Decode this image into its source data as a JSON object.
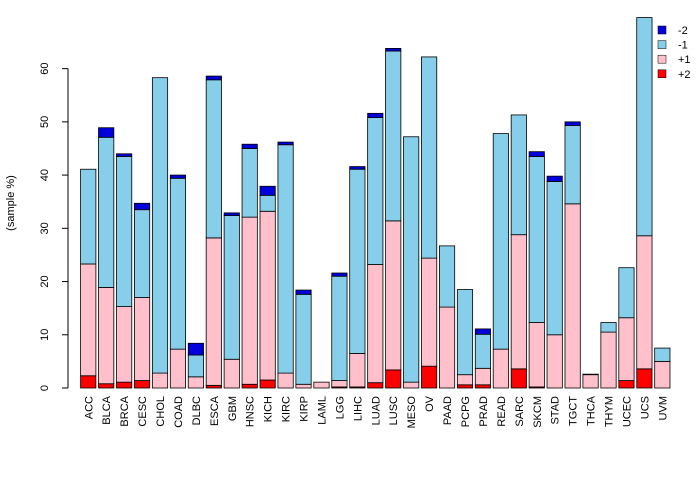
{
  "chart_data": {
    "type": "bar",
    "stacked": true,
    "title": "",
    "xlabel": "",
    "ylabel": "(sample %)",
    "ylim": [
      0,
      70
    ],
    "yticks": [
      0,
      10,
      20,
      30,
      40,
      50,
      60
    ],
    "categories": [
      "ACC",
      "BLCA",
      "BRCA",
      "CESC",
      "CHOL",
      "COAD",
      "DLBC",
      "ESCA",
      "GBM",
      "HNSC",
      "KICH",
      "KIRC",
      "KIRP",
      "LAML",
      "LGG",
      "LIHC",
      "LUAD",
      "LUSC",
      "MESO",
      "OV",
      "PAAD",
      "PCPG",
      "PRAD",
      "READ",
      "SARC",
      "SKCM",
      "STAD",
      "TGCT",
      "THCA",
      "THYM",
      "UCEC",
      "UCS",
      "UVM"
    ],
    "legend": {
      "position": "top-right",
      "entries": [
        {
          "label": "-2",
          "color": "#0000dd"
        },
        {
          "label": "-1",
          "color": "#87ceeb"
        },
        {
          "label": "+1",
          "color": "#ffc0cb"
        },
        {
          "label": "+2",
          "color": "#ff0000"
        }
      ]
    },
    "series": [
      {
        "name": "+2",
        "color": "#ff0000",
        "values": [
          2.3,
          0.8,
          1.1,
          1.4,
          0,
          0,
          0,
          0.5,
          0,
          0.7,
          1.5,
          0,
          0,
          0,
          0.2,
          0.2,
          1.0,
          3.4,
          0,
          4.1,
          0,
          0.6,
          0.6,
          0,
          3.6,
          0.2,
          0,
          0,
          0,
          0,
          1.4,
          3.6,
          0
        ]
      },
      {
        "name": "+1",
        "color": "#ffc0cb",
        "values": [
          21.0,
          18.1,
          14.2,
          15.6,
          2.8,
          7.3,
          2.1,
          27.7,
          5.4,
          31.4,
          31.7,
          2.8,
          0.7,
          1.1,
          1.2,
          6.3,
          22.2,
          28.0,
          1.1,
          20.3,
          15.2,
          1.9,
          3.1,
          7.3,
          25.2,
          12.1,
          10.0,
          34.6,
          2.5,
          10.5,
          11.8,
          25.0,
          5.0
        ]
      },
      {
        "name": "-1",
        "color": "#87ceeb",
        "values": [
          17.8,
          28.2,
          28.2,
          16.5,
          55.5,
          32.1,
          4.1,
          29.7,
          27.0,
          12.9,
          3.0,
          42.9,
          16.9,
          0,
          19.6,
          34.6,
          27.6,
          31.9,
          46.1,
          37.8,
          11.5,
          16.0,
          6.4,
          40.5,
          22.5,
          31.2,
          28.8,
          14.7,
          0,
          1.8,
          9.4,
          41.0,
          2.5
        ]
      },
      {
        "name": "-2",
        "color": "#0000dd",
        "values": [
          0,
          1.8,
          0.5,
          1.2,
          0,
          0.6,
          2.2,
          0.7,
          0.5,
          0.8,
          1.7,
          0.5,
          0.8,
          0,
          0.6,
          0.5,
          0.8,
          0.5,
          0,
          0,
          0,
          0,
          1.0,
          0,
          0,
          0.9,
          1.0,
          0.7,
          0.1,
          0,
          0,
          0,
          0
        ]
      }
    ]
  }
}
